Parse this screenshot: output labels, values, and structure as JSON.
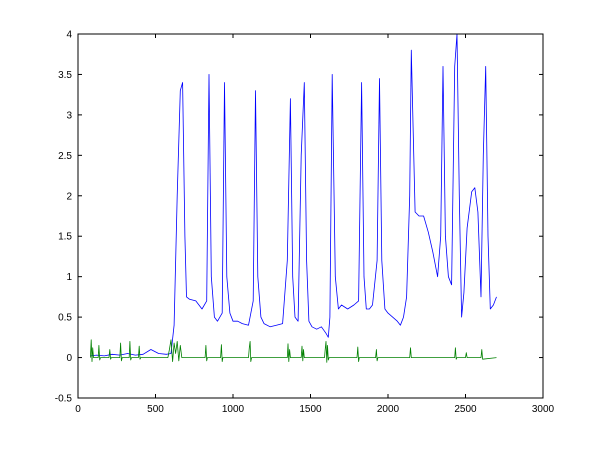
{
  "chart_data": {
    "type": "line",
    "title": "",
    "xlabel": "",
    "ylabel": "",
    "xlim": [
      0,
      3000
    ],
    "ylim": [
      -0.5,
      4
    ],
    "xticks": [
      0,
      500,
      1000,
      1500,
      2000,
      2500,
      3000
    ],
    "yticks": [
      -0.5,
      0,
      0.5,
      1,
      1.5,
      2,
      2.5,
      3,
      3.5,
      4
    ],
    "xtick_labels": [
      "0",
      "500",
      "1000",
      "1500",
      "2000",
      "2500",
      "3000"
    ],
    "ytick_labels": [
      "-0.5",
      "0",
      "0.5",
      "1",
      "1.5",
      "2",
      "2.5",
      "3",
      "3.5",
      "4"
    ],
    "grid": false,
    "legend": "none",
    "series": [
      {
        "color": "#0000ff",
        "x": [
          80,
          120,
          170,
          220,
          270,
          320,
          370,
          420,
          470,
          520,
          570,
          600,
          620,
          640,
          660,
          675,
          690,
          700,
          720,
          760,
          800,
          830,
          845,
          860,
          880,
          900,
          930,
          945,
          960,
          980,
          1000,
          1030,
          1060,
          1100,
          1130,
          1145,
          1160,
          1180,
          1200,
          1240,
          1280,
          1320,
          1350,
          1370,
          1385,
          1400,
          1420,
          1440,
          1460,
          1475,
          1490,
          1510,
          1540,
          1570,
          1600,
          1615,
          1625,
          1640,
          1660,
          1680,
          1700,
          1740,
          1780,
          1810,
          1830,
          1845,
          1860,
          1880,
          1900,
          1930,
          1945,
          1960,
          1980,
          2000,
          2030,
          2060,
          2080,
          2100,
          2120,
          2140,
          2150,
          2160,
          2175,
          2200,
          2230,
          2260,
          2290,
          2320,
          2340,
          2355,
          2370,
          2390,
          2410,
          2430,
          2445,
          2460,
          2475,
          2490,
          2510,
          2540,
          2560,
          2580,
          2600,
          2615,
          2630,
          2645,
          2660,
          2680,
          2700
        ],
        "y": [
          0.02,
          0.03,
          0.02,
          0.04,
          0.03,
          0.05,
          0.03,
          0.04,
          0.1,
          0.05,
          0.04,
          0.05,
          0.4,
          2.0,
          3.3,
          3.4,
          1.5,
          0.75,
          0.72,
          0.7,
          0.6,
          0.7,
          3.5,
          1.0,
          0.5,
          0.45,
          0.55,
          3.4,
          1.0,
          0.55,
          0.45,
          0.45,
          0.42,
          0.4,
          0.7,
          3.3,
          1.0,
          0.5,
          0.42,
          0.38,
          0.4,
          0.42,
          1.2,
          3.2,
          1.0,
          0.5,
          0.45,
          2.5,
          3.4,
          1.2,
          0.45,
          0.38,
          0.35,
          0.38,
          0.3,
          0.25,
          0.5,
          3.5,
          1.0,
          0.6,
          0.65,
          0.6,
          0.65,
          0.7,
          3.4,
          1.0,
          0.6,
          0.6,
          0.65,
          1.2,
          3.45,
          1.2,
          0.6,
          0.55,
          0.5,
          0.45,
          0.4,
          0.5,
          0.75,
          2.0,
          3.8,
          3.0,
          1.8,
          1.75,
          1.75,
          1.55,
          1.3,
          1.0,
          1.5,
          3.6,
          1.5,
          1.0,
          0.9,
          3.6,
          4.0,
          2.0,
          0.5,
          0.8,
          1.6,
          2.05,
          2.1,
          1.8,
          0.75,
          2.5,
          3.6,
          1.5,
          0.6,
          0.65,
          0.75
        ]
      },
      {
        "color": "#008000",
        "x": [
          80,
          85,
          90,
          95,
          100,
          130,
          135,
          140,
          145,
          200,
          205,
          210,
          215,
          270,
          275,
          280,
          285,
          330,
          335,
          340,
          345,
          390,
          395,
          400,
          405,
          580,
          590,
          600,
          610,
          620,
          630,
          640,
          650,
          660,
          670,
          680,
          820,
          825,
          830,
          835,
          920,
          925,
          930,
          935,
          1100,
          1105,
          1110,
          1115,
          1120,
          1350,
          1355,
          1360,
          1365,
          1370,
          1440,
          1445,
          1450,
          1455,
          1460,
          1590,
          1595,
          1600,
          1605,
          1610,
          1615,
          1620,
          1800,
          1805,
          1810,
          1815,
          1920,
          1925,
          1930,
          1935,
          2140,
          2145,
          2150,
          2430,
          2435,
          2440,
          2445,
          2500,
          2505,
          2510,
          2600,
          2605,
          2610,
          2700
        ],
        "y": [
          0,
          0.22,
          -0.05,
          0.12,
          0,
          0,
          0.15,
          -0.03,
          0,
          0,
          0.1,
          -0.02,
          0,
          0,
          0.18,
          -0.04,
          0,
          0,
          0.2,
          -0.03,
          0,
          0,
          0.14,
          -0.02,
          0,
          0,
          0.1,
          0.22,
          -0.05,
          0.18,
          0.05,
          0.2,
          -0.04,
          0.15,
          0,
          0,
          0,
          0.15,
          -0.04,
          0,
          0,
          0.16,
          -0.05,
          0,
          0,
          0.12,
          0.2,
          -0.05,
          0,
          0,
          0.17,
          -0.05,
          0.1,
          0,
          0,
          0.14,
          -0.04,
          0.1,
          0,
          0,
          0.1,
          0.2,
          -0.06,
          0.15,
          -0.03,
          0,
          0,
          0.13,
          -0.05,
          0,
          0,
          0.1,
          -0.04,
          0,
          0,
          0.12,
          0,
          0,
          0.12,
          -0.02,
          0,
          0,
          0.06,
          0,
          0,
          0.1,
          -0.02,
          0
        ]
      }
    ]
  }
}
